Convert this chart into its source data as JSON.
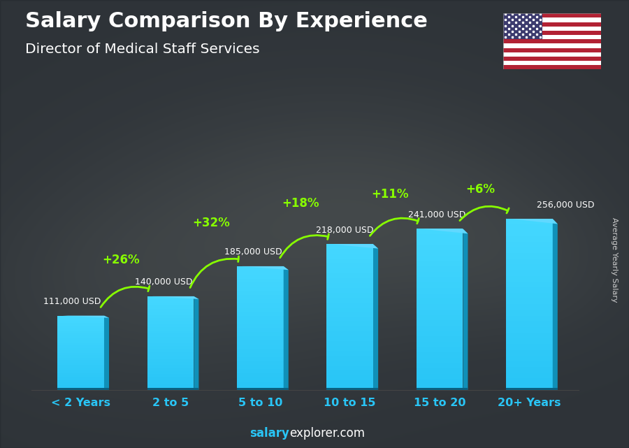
{
  "title": "Salary Comparison By Experience",
  "subtitle": "Director of Medical Staff Services",
  "ylabel": "Average Yearly Salary",
  "categories": [
    "< 2 Years",
    "2 to 5",
    "5 to 10",
    "10 to 15",
    "15 to 20",
    "20+ Years"
  ],
  "values": [
    111000,
    140000,
    185000,
    218000,
    241000,
    256000
  ],
  "labels": [
    "111,000 USD",
    "140,000 USD",
    "185,000 USD",
    "218,000 USD",
    "241,000 USD",
    "256,000 USD"
  ],
  "pct_changes": [
    "+26%",
    "+32%",
    "+18%",
    "+11%",
    "+6%"
  ],
  "bar_color_main": "#29c5f6",
  "bar_color_right": "#1090b8",
  "bar_color_top": "#60d8ff",
  "bar_color_shadow": "#0a6080",
  "pct_color": "#88ff00",
  "cat_color": "#29c5f6",
  "label_color": "#ffffff",
  "title_color": "#ffffff",
  "subtitle_color": "#ffffff",
  "bg_dark": "#2a3035",
  "footer_salary_color": "#29c5f6",
  "footer_explorer_color": "#ffffff",
  "ylabel_color": "#cccccc"
}
